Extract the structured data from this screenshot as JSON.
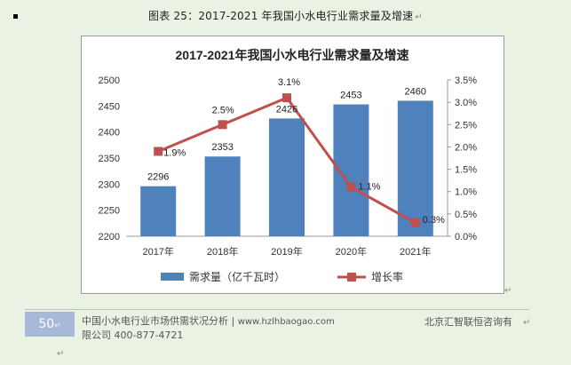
{
  "caption": {
    "text": "图表 25：2017-2021 年我国小水电行业需求量及增速"
  },
  "chart_data": {
    "type": "bar",
    "title": "2017-2021年我国小水电行业需求量及增速",
    "categories": [
      "2017年",
      "2018年",
      "2019年",
      "2020年",
      "2021年"
    ],
    "series": [
      {
        "name": "需求量（亿千瓦时）",
        "type": "bar",
        "axis": "left",
        "values": [
          2296,
          2353,
          2426,
          2453,
          2460
        ],
        "labels": [
          "2296",
          "2353",
          "2426",
          "2453",
          "2460"
        ],
        "color": "#4f81bd"
      },
      {
        "name": "增长率",
        "type": "line",
        "axis": "right",
        "values": [
          1.9,
          2.5,
          3.1,
          1.1,
          0.3
        ],
        "labels": [
          "1.9%",
          "2.5%",
          "3.1%",
          "1.1%",
          "0.3%"
        ],
        "color": "#c0504d"
      }
    ],
    "y_left": {
      "min": 2200,
      "max": 2500,
      "step": 50,
      "ticks": [
        "2200",
        "2250",
        "2300",
        "2350",
        "2400",
        "2450",
        "2500"
      ]
    },
    "y_right": {
      "min": 0,
      "max": 3.5,
      "step": 0.5,
      "ticks": [
        "0.0%",
        "0.5%",
        "1.0%",
        "1.5%",
        "2.0%",
        "2.5%",
        "3.0%",
        "3.5%"
      ]
    },
    "grid": false,
    "legend_position": "bottom"
  },
  "footer": {
    "page_number": "50",
    "line1_title": "中国小水电行业市场供需状况分析",
    "line1_url": "www.hzlhbaogao.com",
    "line2": "限公司  400-877-4721",
    "org": "北京汇智联恒咨询有"
  }
}
